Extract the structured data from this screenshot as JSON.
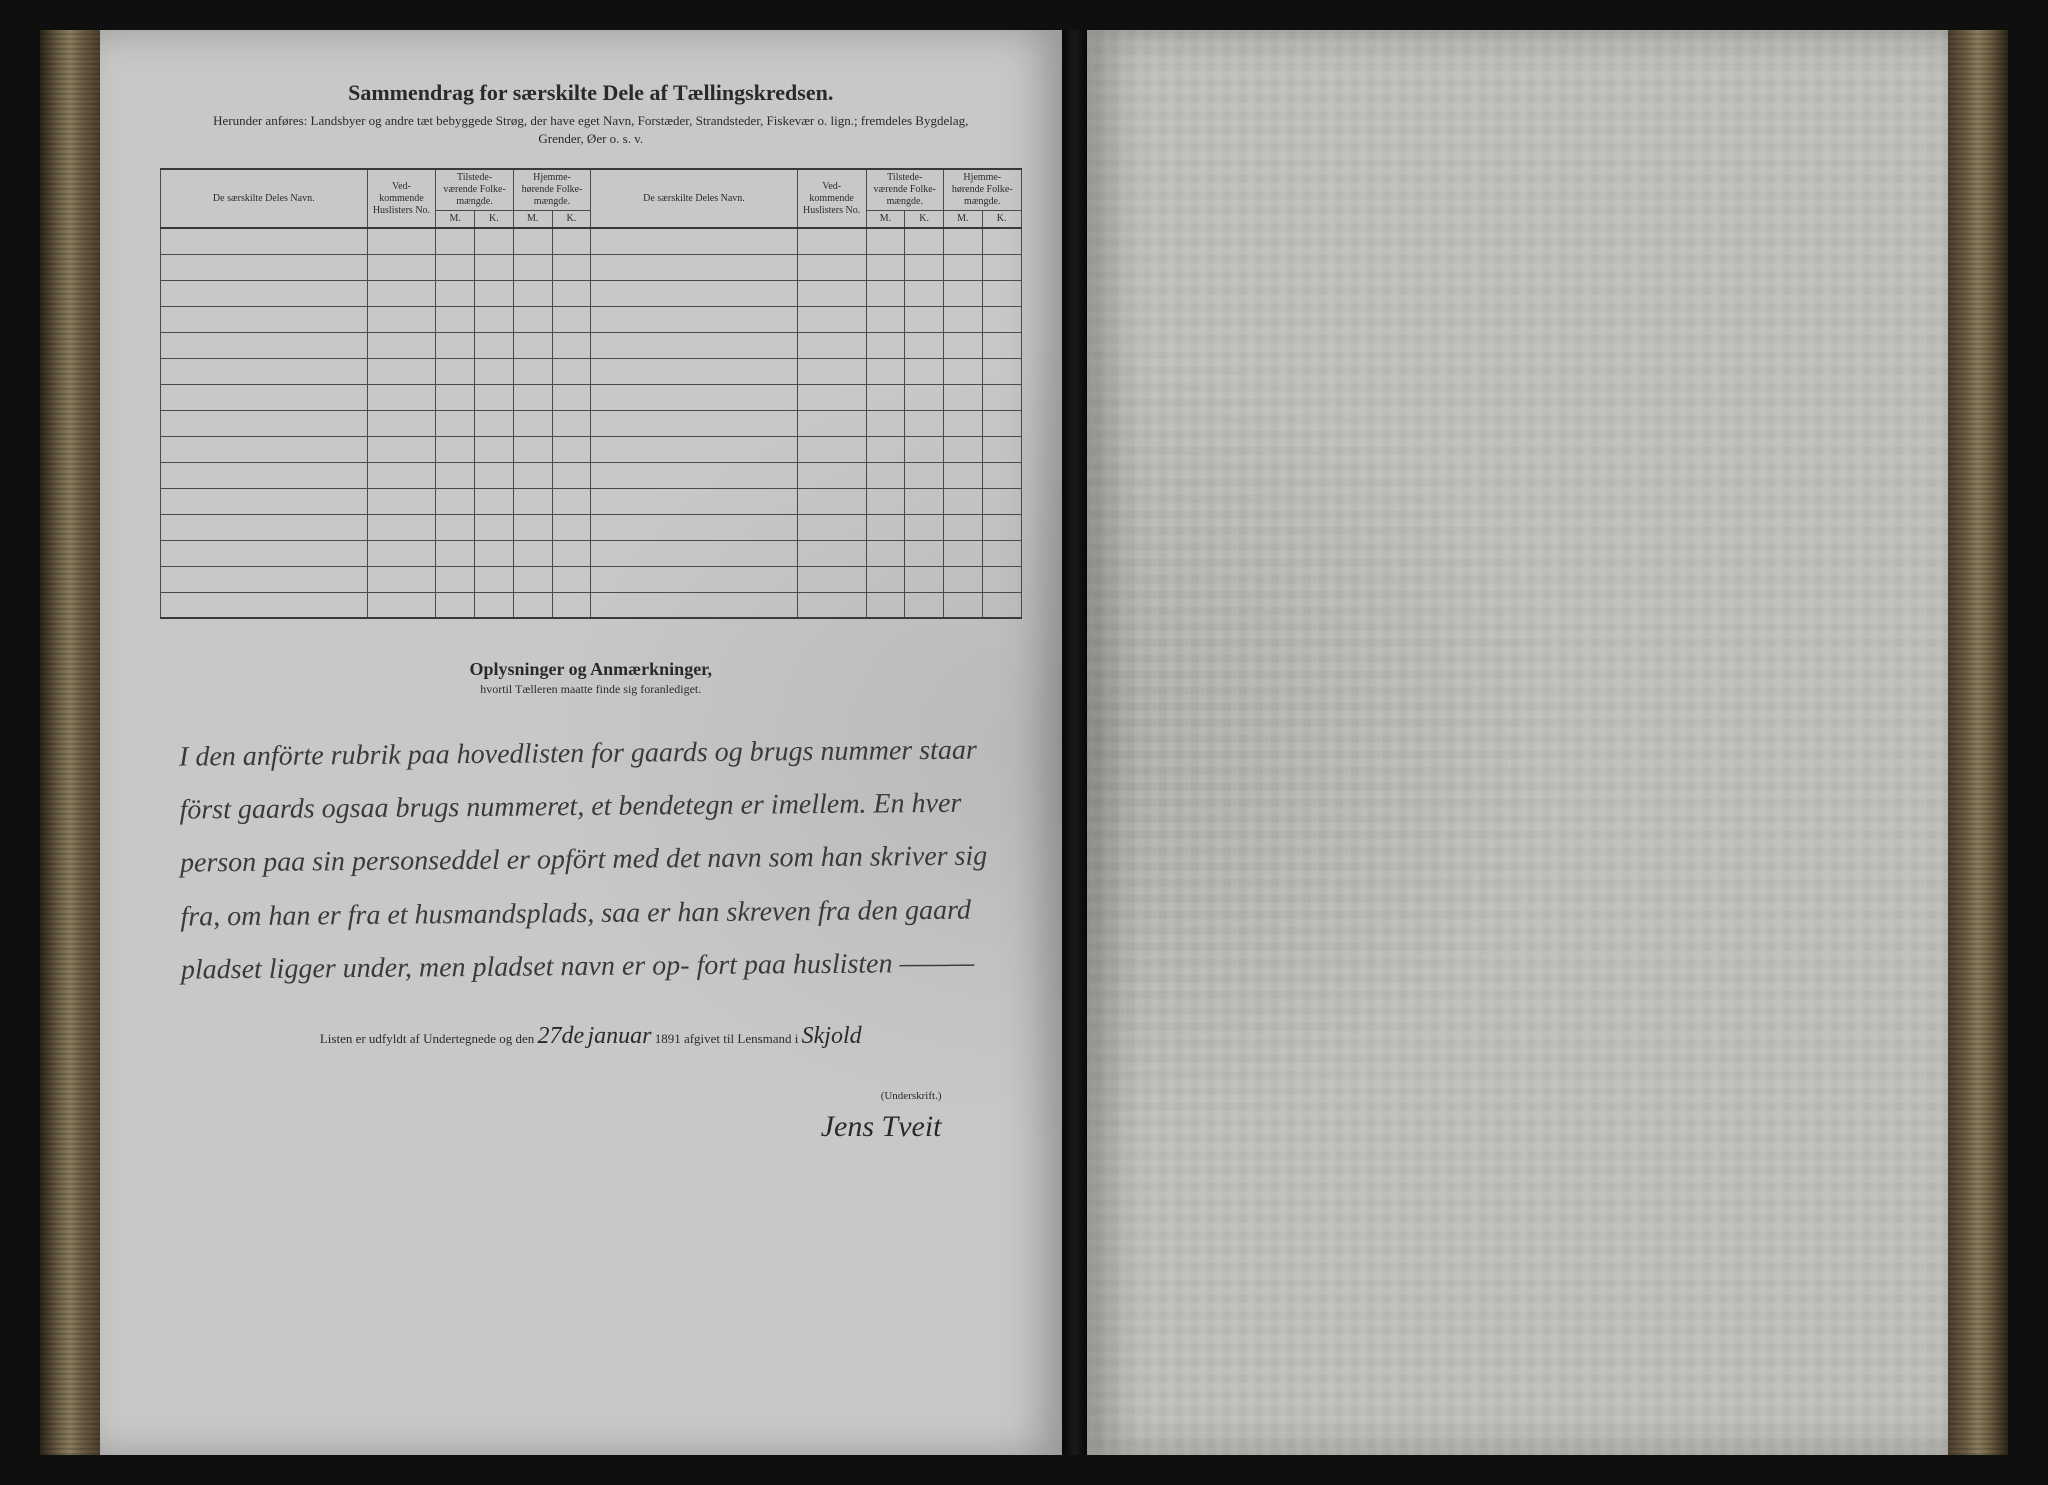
{
  "header": {
    "title": "Sammendrag for særskilte Dele af Tællingskredsen.",
    "subtitle": "Herunder anføres: Landsbyer og andre tæt bebyggede Strøg, der have eget Navn, Forstæder, Strandsteder, Fiskevær o. lign.; fremdeles Bygdelag, Grender, Øer o. s. v."
  },
  "table": {
    "columns": {
      "name": "De særskilte Deles Navn.",
      "huslisters": "Ved-kommende Huslisters No.",
      "tilstede": "Tilstede-værende Folke-mængde.",
      "hjemme": "Hjemme-hørende Folke-mængde.",
      "m": "M.",
      "k": "K."
    },
    "row_count": 15,
    "colors": {
      "border": "#4a4a4a",
      "background": "#c8c9c7"
    }
  },
  "remarks": {
    "title": "Oplysninger og Anmærkninger,",
    "subtitle": "hvortil Tælleren maatte finde sig foranlediget.",
    "handwritten_text": "I den anförte rubrik paa hovedlisten for gaards og brugs nummer staar först gaards ogsaa brugs nummeret, et bendetegn er imellem. En hver person paa sin personseddel er opfört med det navn som han skriver sig fra, om han er fra et husmandsplads, saa er han skreven fra den gaard pladset ligger under, men pladset navn er op- fort paa huslisten ———"
  },
  "footer": {
    "line_prefix": "Listen er udfyldt af Undertegnede og den",
    "date_hand": "27de",
    "month": "januar",
    "year": "1891",
    "line_mid": "afgivet til Lensmand i",
    "place_hand": "Skjold",
    "signature_label": "(Underskrift.)",
    "signature": "Jens Tveit"
  },
  "styling": {
    "page_bg_left": "#c8c9c7",
    "page_bg_right": "#b8b8b3",
    "text_color": "#2a2a2a",
    "handwriting_color": "#3a3a3a",
    "title_fontsize": 22,
    "body_fontsize": 13,
    "table_fontsize": 11,
    "handwriting_fontsize": 28
  }
}
